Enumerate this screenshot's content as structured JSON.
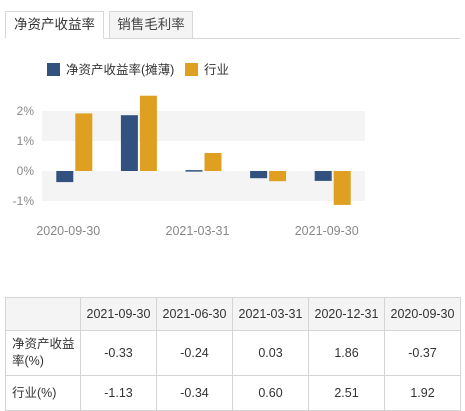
{
  "tabs": [
    {
      "label": "净资产收益率",
      "active": true
    },
    {
      "label": "销售毛利率",
      "active": false
    }
  ],
  "colors": {
    "series1": "#33517f",
    "series2": "#dfa021",
    "band": "#f4f4f4",
    "axis_text": "#888888"
  },
  "chart_data": {
    "type": "bar",
    "categories": [
      "2020-09-30",
      "2020-12-31",
      "2021-03-31",
      "2021-06-30",
      "2021-09-30"
    ],
    "series": [
      {
        "name": "净资产收益率(摊薄)",
        "values": [
          -0.37,
          1.86,
          0.03,
          -0.24,
          -0.33
        ],
        "color": "#33517f"
      },
      {
        "name": "行业",
        "values": [
          1.92,
          2.51,
          0.6,
          -0.34,
          -1.13
        ],
        "color": "#dfa021"
      }
    ],
    "ylim": [
      -1.2,
      2.6
    ],
    "yticks": [
      2,
      1,
      0,
      -1
    ],
    "ytick_labels": [
      "2%",
      "1%",
      "0%",
      "-1%"
    ],
    "xtick_labels": [
      "2020-09-30",
      "",
      "2021-03-31",
      "",
      "2021-09-30"
    ],
    "legend_position": "top-left",
    "grid": false
  },
  "table": {
    "headers": [
      "",
      "2021-09-30",
      "2021-06-30",
      "2021-03-31",
      "2020-12-31",
      "2020-09-30"
    ],
    "rows": [
      {
        "label": "净资产收益率(%)",
        "values": [
          "-0.33",
          "-0.24",
          "0.03",
          "1.86",
          "-0.37"
        ]
      },
      {
        "label": "行业(%)",
        "values": [
          "-1.13",
          "-0.34",
          "0.60",
          "2.51",
          "1.92"
        ]
      }
    ]
  }
}
